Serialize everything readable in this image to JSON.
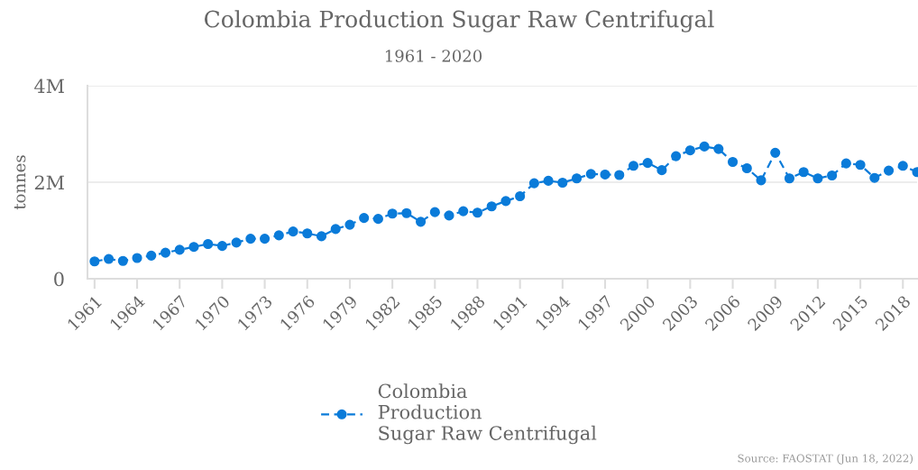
{
  "chart_data": {
    "type": "line",
    "title": "Colombia Production Sugar Raw Centrifugal",
    "subtitle": "1961 - 2020",
    "ylabel": "tonnes",
    "x": [
      1961,
      1962,
      1963,
      1964,
      1965,
      1966,
      1967,
      1968,
      1969,
      1970,
      1971,
      1972,
      1973,
      1974,
      1975,
      1976,
      1977,
      1978,
      1979,
      1980,
      1981,
      1982,
      1983,
      1984,
      1985,
      1986,
      1987,
      1988,
      1989,
      1990,
      1991,
      1992,
      1993,
      1994,
      1995,
      1996,
      1997,
      1998,
      1999,
      2000,
      2001,
      2002,
      2003,
      2004,
      2005,
      2006,
      2007,
      2008,
      2009,
      2010,
      2011,
      2012,
      2013,
      2014,
      2015,
      2016,
      2017,
      2018,
      2019
    ],
    "series": [
      {
        "name": "Colombia\nProduction\nSugar Raw Centrifugal",
        "color": "#0a7bd9",
        "values": [
          360000,
          410000,
          370000,
          430000,
          480000,
          540000,
          600000,
          660000,
          720000,
          680000,
          750000,
          830000,
          830000,
          900000,
          980000,
          940000,
          880000,
          1030000,
          1120000,
          1260000,
          1240000,
          1350000,
          1360000,
          1180000,
          1380000,
          1310000,
          1400000,
          1370000,
          1500000,
          1610000,
          1710000,
          1980000,
          2030000,
          1990000,
          2080000,
          2170000,
          2160000,
          2150000,
          2340000,
          2400000,
          2250000,
          2540000,
          2660000,
          2740000,
          2690000,
          2420000,
          2290000,
          2040000,
          2610000,
          2080000,
          2210000,
          2080000,
          2140000,
          2390000,
          2360000,
          2090000,
          2240000,
          2340000,
          2210000
        ]
      }
    ],
    "xlim": [
      1960.5,
      2019
    ],
    "xticks": [
      1961,
      1964,
      1967,
      1970,
      1973,
      1976,
      1979,
      1982,
      1985,
      1988,
      1991,
      1994,
      1997,
      2000,
      2003,
      2006,
      2009,
      2012,
      2015,
      2018
    ],
    "ylim": [
      0,
      4000000
    ],
    "yticks": [
      {
        "value": 0,
        "label": "0"
      },
      {
        "value": 2000000,
        "label": "2M"
      },
      {
        "value": 4000000,
        "label": "4M"
      }
    ],
    "grid": "y",
    "legend": "bottom",
    "marker": "circle",
    "line_style": "dashed",
    "annotations": [
      "Source: FAOSTAT (Jun 18, 2022)"
    ]
  }
}
